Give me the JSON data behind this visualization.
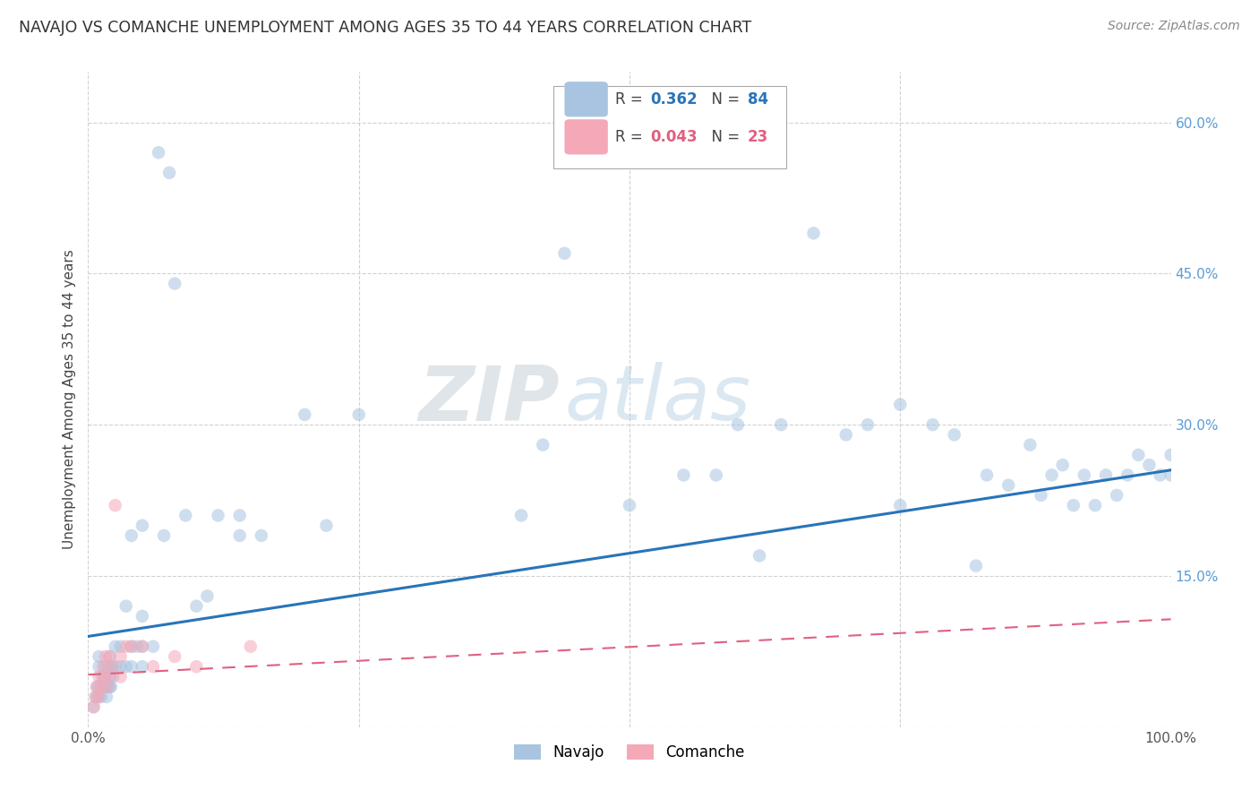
{
  "title": "NAVAJO VS COMANCHE UNEMPLOYMENT AMONG AGES 35 TO 44 YEARS CORRELATION CHART",
  "source": "Source: ZipAtlas.com",
  "ylabel": "Unemployment Among Ages 35 to 44 years",
  "navajo_R": "0.362",
  "navajo_N": "84",
  "comanche_R": "0.043",
  "comanche_N": "23",
  "navajo_color": "#a8c4e0",
  "comanche_color": "#f4a8b8",
  "navajo_line_color": "#2874b8",
  "comanche_line_color": "#e06080",
  "watermark_zip": "ZIP",
  "watermark_atlas": "atlas",
  "xlim": [
    0.0,
    1.0
  ],
  "ylim": [
    0.0,
    0.65
  ],
  "xtick_pos": [
    0.0,
    0.25,
    0.5,
    0.75,
    1.0
  ],
  "xtick_labels": [
    "0.0%",
    "",
    "",
    "",
    "100.0%"
  ],
  "ytick_pos": [
    0.0,
    0.15,
    0.3,
    0.45,
    0.6
  ],
  "ytick_labels": [
    "",
    "15.0%",
    "30.0%",
    "45.0%",
    "60.0%"
  ],
  "navajo_x": [
    0.005,
    0.007,
    0.008,
    0.009,
    0.01,
    0.01,
    0.01,
    0.012,
    0.013,
    0.015,
    0.015,
    0.016,
    0.017,
    0.018,
    0.019,
    0.02,
    0.02,
    0.02,
    0.021,
    0.022,
    0.023,
    0.025,
    0.025,
    0.03,
    0.03,
    0.035,
    0.035,
    0.04,
    0.04,
    0.04,
    0.045,
    0.05,
    0.05,
    0.05,
    0.05,
    0.06,
    0.065,
    0.07,
    0.075,
    0.08,
    0.09,
    0.1,
    0.11,
    0.12,
    0.14,
    0.14,
    0.16,
    0.2,
    0.22,
    0.25,
    0.4,
    0.42,
    0.44,
    0.5,
    0.55,
    0.58,
    0.6,
    0.62,
    0.64,
    0.67,
    0.7,
    0.72,
    0.75,
    0.75,
    0.78,
    0.8,
    0.82,
    0.83,
    0.85,
    0.87,
    0.88,
    0.89,
    0.9,
    0.91,
    0.92,
    0.93,
    0.94,
    0.95,
    0.96,
    0.97,
    0.98,
    0.99,
    1.0,
    1.0
  ],
  "navajo_y": [
    0.02,
    0.03,
    0.04,
    0.03,
    0.04,
    0.06,
    0.07,
    0.03,
    0.05,
    0.04,
    0.05,
    0.06,
    0.03,
    0.04,
    0.06,
    0.04,
    0.05,
    0.07,
    0.04,
    0.06,
    0.05,
    0.06,
    0.08,
    0.06,
    0.08,
    0.06,
    0.12,
    0.06,
    0.08,
    0.19,
    0.08,
    0.06,
    0.08,
    0.11,
    0.2,
    0.08,
    0.57,
    0.19,
    0.55,
    0.44,
    0.21,
    0.12,
    0.13,
    0.21,
    0.19,
    0.21,
    0.19,
    0.31,
    0.2,
    0.31,
    0.21,
    0.28,
    0.47,
    0.22,
    0.25,
    0.25,
    0.3,
    0.17,
    0.3,
    0.49,
    0.29,
    0.3,
    0.32,
    0.22,
    0.3,
    0.29,
    0.16,
    0.25,
    0.24,
    0.28,
    0.23,
    0.25,
    0.26,
    0.22,
    0.25,
    0.22,
    0.25,
    0.23,
    0.25,
    0.27,
    0.26,
    0.25,
    0.25,
    0.27
  ],
  "comanche_x": [
    0.005,
    0.007,
    0.008,
    0.01,
    0.01,
    0.012,
    0.014,
    0.015,
    0.016,
    0.018,
    0.02,
    0.02,
    0.022,
    0.025,
    0.03,
    0.03,
    0.035,
    0.04,
    0.05,
    0.06,
    0.08,
    0.1,
    0.15
  ],
  "comanche_y": [
    0.02,
    0.03,
    0.04,
    0.03,
    0.05,
    0.04,
    0.06,
    0.05,
    0.07,
    0.04,
    0.05,
    0.07,
    0.06,
    0.22,
    0.05,
    0.07,
    0.08,
    0.08,
    0.08,
    0.06,
    0.07,
    0.06,
    0.08
  ],
  "navajo_intercept": 0.09,
  "navajo_slope": 0.165,
  "comanche_intercept": 0.052,
  "comanche_slope": 0.055,
  "bg_color": "#ffffff",
  "grid_color": "#cccccc",
  "marker_size": 110,
  "marker_alpha": 0.55
}
